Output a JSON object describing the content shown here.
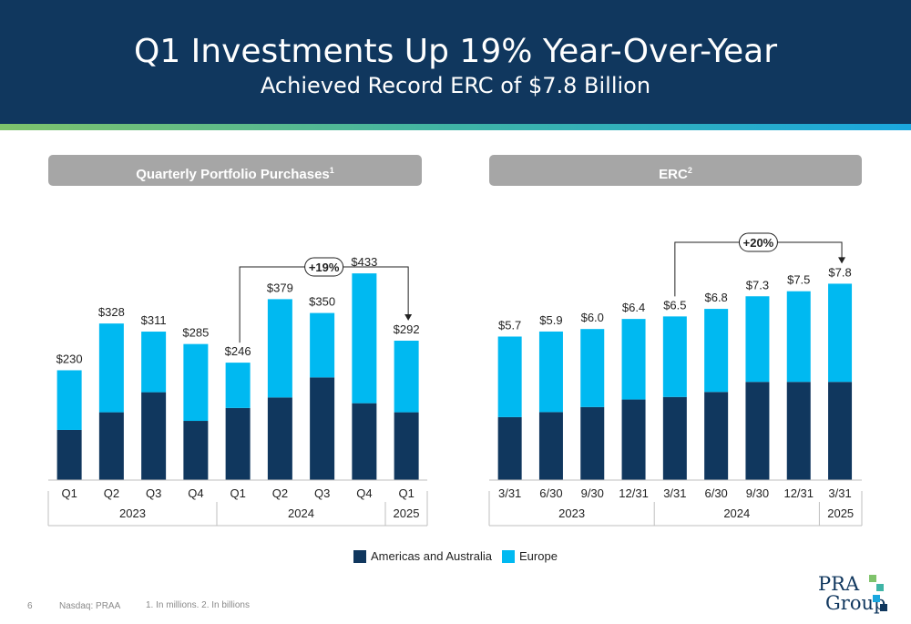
{
  "header": {
    "title": "Q1 Investments Up 19% Year-Over-Year",
    "subtitle": "Achieved Record ERC of $7.8 Billion"
  },
  "panels": {
    "left_title": "Quarterly Portfolio Purchases",
    "left_footnote": "1",
    "right_title": "ERC",
    "right_footnote": "2"
  },
  "legend": {
    "americas": "Americas and Australia",
    "europe": "Europe"
  },
  "colors": {
    "americas": "#10375e",
    "europe": "#00b9f1",
    "header": "#10375e",
    "panel_title": "#a6a6a6"
  },
  "footer": {
    "page": "6",
    "ticker": "Nasdaq: PRAA",
    "note": "1. In millions. 2. In billions"
  },
  "logo": {
    "line1": "PRA",
    "line2": "Group"
  },
  "chart_data": [
    {
      "type": "bar",
      "stacked": true,
      "categories": [
        "Q1",
        "Q2",
        "Q3",
        "Q4",
        "Q1",
        "Q2",
        "Q3",
        "Q4",
        "Q1"
      ],
      "groups": [
        {
          "label": "2023",
          "count": 4
        },
        {
          "label": "2024",
          "count": 4
        },
        {
          "label": "2025",
          "count": 1
        }
      ],
      "totals": [
        "$230",
        "$328",
        "$311",
        "$285",
        "$246",
        "$379",
        "$350",
        "$433",
        "$292"
      ],
      "series": [
        {
          "name": "Americas and Australia",
          "values": [
            105,
            142,
            184,
            124,
            151,
            173,
            215,
            161,
            142
          ]
        },
        {
          "name": "Europe",
          "values": [
            125,
            186,
            127,
            161,
            95,
            206,
            135,
            272,
            150
          ]
        }
      ],
      "ylim": [
        0,
        500
      ],
      "annotation": {
        "label": "+19%",
        "from_index": 4,
        "to_index": 8
      }
    },
    {
      "type": "bar",
      "stacked": true,
      "categories": [
        "3/31",
        "6/30",
        "9/30",
        "12/31",
        "3/31",
        "6/30",
        "9/30",
        "12/31",
        "3/31"
      ],
      "groups": [
        {
          "label": "2023",
          "count": 4
        },
        {
          "label": "2024",
          "count": 4
        },
        {
          "label": "2025",
          "count": 1
        }
      ],
      "totals": [
        "$5.7",
        "$5.9",
        "$6.0",
        "$6.4",
        "$6.5",
        "$6.8",
        "$7.3",
        "$7.5",
        "$7.8"
      ],
      "series": [
        {
          "name": "Americas and Australia",
          "values": [
            2.5,
            2.7,
            2.9,
            3.2,
            3.3,
            3.5,
            3.9,
            3.9,
            3.9
          ]
        },
        {
          "name": "Europe",
          "values": [
            3.2,
            3.2,
            3.1,
            3.2,
            3.2,
            3.3,
            3.4,
            3.6,
            3.9
          ]
        }
      ],
      "ylim": [
        0,
        8.25
      ],
      "annotation": {
        "label": "+20%",
        "from_index": 4,
        "to_index": 8
      }
    }
  ]
}
